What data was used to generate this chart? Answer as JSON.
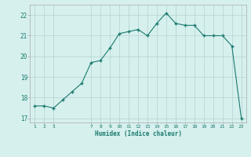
{
  "x": [
    1,
    2,
    3,
    4,
    5,
    6,
    7,
    8,
    9,
    10,
    11,
    12,
    13,
    14,
    15,
    16,
    17,
    18,
    19,
    20,
    21,
    22,
    23
  ],
  "y": [
    17.6,
    17.6,
    17.5,
    17.9,
    18.3,
    18.7,
    19.7,
    19.8,
    20.4,
    21.1,
    21.2,
    21.3,
    21.0,
    21.6,
    22.1,
    21.6,
    21.5,
    21.5,
    21.0,
    21.0,
    21.0,
    20.5,
    17.0
  ],
  "xlabel": "Humidex (Indice chaleur)",
  "ylim": [
    16.8,
    22.5
  ],
  "xlim": [
    0.5,
    23.5
  ],
  "yticks": [
    17,
    18,
    19,
    20,
    21,
    22
  ],
  "xticks": [
    1,
    2,
    3,
    7,
    8,
    9,
    10,
    11,
    12,
    13,
    14,
    15,
    16,
    17,
    18,
    19,
    20,
    21,
    22,
    23
  ],
  "line_color": "#1a7a6e",
  "marker_color": "#1a7a6e",
  "bg_color": "#d6f0ee",
  "grid_color": "#b8d8d4",
  "axis_color": "#aaaaaa",
  "label_color": "#1a7a6e",
  "tick_color": "#1a7a6e"
}
